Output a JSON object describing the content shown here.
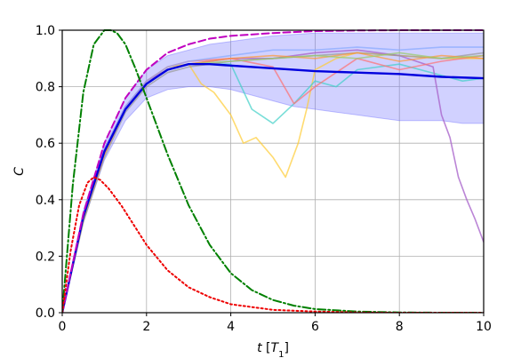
{
  "chart_data": {
    "type": "line",
    "title": "",
    "xlabel": "t [T1]",
    "ylabel": "C",
    "xlim": [
      0,
      10
    ],
    "ylim": [
      0,
      1
    ],
    "xticks": [
      "0",
      "2",
      "4",
      "6",
      "8",
      "10"
    ],
    "yticks": [
      "0.0",
      "0.2",
      "0.4",
      "0.6",
      "0.8",
      "1.0"
    ],
    "grid": true,
    "legend": "none",
    "band": {
      "color": "#6666ff",
      "x": [
        0,
        0.5,
        1,
        1.5,
        2,
        2.5,
        3,
        3.5,
        4,
        4.5,
        5,
        5.5,
        6,
        6.5,
        7,
        7.5,
        8,
        8.5,
        9,
        9.5,
        10
      ],
      "upper": [
        0,
        0.36,
        0.6,
        0.76,
        0.86,
        0.91,
        0.93,
        0.95,
        0.96,
        0.97,
        0.98,
        0.985,
        0.99,
        0.99,
        0.99,
        0.99,
        0.99,
        0.99,
        0.99,
        0.99,
        0.99
      ],
      "lower": [
        0,
        0.32,
        0.54,
        0.68,
        0.76,
        0.79,
        0.8,
        0.8,
        0.79,
        0.77,
        0.75,
        0.73,
        0.72,
        0.71,
        0.7,
        0.69,
        0.68,
        0.68,
        0.68,
        0.67,
        0.67
      ]
    },
    "series": [
      {
        "color": "#0000dd",
        "style": "solid",
        "width": 2.4,
        "x": [
          0,
          0.5,
          1,
          1.5,
          2,
          2.5,
          3,
          3.5,
          4,
          5,
          6,
          7,
          8,
          9,
          10
        ],
        "y": [
          0,
          0.34,
          0.57,
          0.72,
          0.81,
          0.86,
          0.88,
          0.88,
          0.875,
          0.865,
          0.855,
          0.85,
          0.845,
          0.835,
          0.83
        ]
      },
      {
        "color": "#c000c0",
        "style": "dashed",
        "width": 2,
        "x": [
          0,
          0.5,
          1,
          1.5,
          2,
          2.5,
          3,
          3.5,
          4,
          5,
          6,
          7,
          8,
          9,
          10
        ],
        "y": [
          0,
          0.35,
          0.6,
          0.76,
          0.86,
          0.92,
          0.95,
          0.97,
          0.98,
          0.99,
          0.997,
          0.999,
          1.0,
          1.0,
          1.0
        ]
      },
      {
        "color": "#008000",
        "style": "dashdot",
        "width": 2,
        "x": [
          0,
          0.25,
          0.5,
          0.75,
          1,
          1.15,
          1.3,
          1.5,
          1.75,
          2,
          2.5,
          3,
          3.5,
          4,
          4.5,
          5,
          5.5,
          6,
          7,
          8,
          9,
          10
        ],
        "y": [
          0,
          0.45,
          0.78,
          0.95,
          1.0,
          1.0,
          0.99,
          0.95,
          0.86,
          0.76,
          0.56,
          0.38,
          0.24,
          0.14,
          0.08,
          0.045,
          0.025,
          0.013,
          0.004,
          0.001,
          0,
          0
        ]
      },
      {
        "color": "#ee0000",
        "style": "dotted",
        "width": 2,
        "x": [
          0,
          0.2,
          0.4,
          0.6,
          0.75,
          0.9,
          1.1,
          1.4,
          1.7,
          2,
          2.5,
          3,
          3.5,
          4,
          5,
          6,
          7,
          8,
          10
        ],
        "y": [
          0,
          0.22,
          0.38,
          0.46,
          0.48,
          0.47,
          0.44,
          0.38,
          0.31,
          0.24,
          0.15,
          0.09,
          0.055,
          0.03,
          0.01,
          0.004,
          0.001,
          0,
          0
        ]
      },
      {
        "color": "#ffcc33",
        "style": "solid",
        "width": 1.6,
        "opacity": 0.7,
        "x": [
          0,
          0.5,
          1,
          1.5,
          2,
          2.5,
          3,
          3.3,
          3.6,
          4,
          4.3,
          4.6,
          5,
          5.3,
          5.6,
          5.8,
          6,
          6.5,
          7,
          8,
          9,
          10
        ],
        "y": [
          0,
          0.33,
          0.56,
          0.72,
          0.82,
          0.87,
          0.88,
          0.81,
          0.78,
          0.7,
          0.6,
          0.62,
          0.55,
          0.48,
          0.6,
          0.72,
          0.86,
          0.9,
          0.92,
          0.91,
          0.9,
          0.9
        ]
      },
      {
        "color": "#40d0c8",
        "style": "solid",
        "width": 1.6,
        "opacity": 0.7,
        "x": [
          0,
          0.5,
          1,
          1.5,
          2,
          2.5,
          3,
          4,
          4.5,
          5,
          5.5,
          6,
          6.5,
          7,
          8,
          9,
          9.5,
          10
        ],
        "y": [
          0,
          0.33,
          0.57,
          0.72,
          0.81,
          0.86,
          0.88,
          0.88,
          0.72,
          0.67,
          0.74,
          0.82,
          0.8,
          0.86,
          0.88,
          0.84,
          0.82,
          0.83
        ]
      },
      {
        "color": "#aa66cc",
        "style": "solid",
        "width": 1.6,
        "opacity": 0.8,
        "x": [
          0,
          0.5,
          1,
          1.5,
          2,
          2.5,
          3,
          4,
          5,
          6,
          7,
          8,
          8.8,
          9,
          9.2,
          9.4,
          9.6,
          9.8,
          10
        ],
        "y": [
          0,
          0.34,
          0.58,
          0.73,
          0.82,
          0.86,
          0.88,
          0.9,
          0.9,
          0.92,
          0.93,
          0.91,
          0.87,
          0.7,
          0.62,
          0.48,
          0.4,
          0.33,
          0.25
        ]
      },
      {
        "color": "#ff7070",
        "style": "solid",
        "width": 1.6,
        "opacity": 0.7,
        "x": [
          0,
          0.5,
          1,
          1.5,
          2,
          2.5,
          3,
          4,
          5,
          5.5,
          6,
          6.5,
          7,
          8,
          9,
          10
        ],
        "y": [
          0,
          0.33,
          0.57,
          0.72,
          0.82,
          0.87,
          0.89,
          0.9,
          0.87,
          0.74,
          0.8,
          0.85,
          0.9,
          0.86,
          0.89,
          0.91
        ]
      },
      {
        "color": "#88aaff",
        "style": "solid",
        "width": 1.6,
        "opacity": 0.7,
        "x": [
          0,
          0.5,
          1,
          1.5,
          2,
          2.5,
          3,
          4,
          5,
          6,
          7,
          8,
          9,
          10
        ],
        "y": [
          0,
          0.34,
          0.58,
          0.73,
          0.82,
          0.87,
          0.89,
          0.91,
          0.93,
          0.93,
          0.94,
          0.93,
          0.94,
          0.94
        ]
      },
      {
        "color": "#999999",
        "style": "solid",
        "width": 1.6,
        "opacity": 0.7,
        "x": [
          0,
          0.5,
          1,
          1.5,
          2,
          2.5,
          3,
          4,
          5,
          6,
          7,
          8,
          9,
          10
        ],
        "y": [
          0,
          0.32,
          0.55,
          0.71,
          0.8,
          0.85,
          0.87,
          0.89,
          0.9,
          0.91,
          0.92,
          0.91,
          0.9,
          0.92
        ]
      },
      {
        "color": "#ff9933",
        "style": "solid",
        "width": 1.6,
        "opacity": 0.7,
        "x": [
          0,
          0.5,
          1,
          1.5,
          2,
          2.5,
          3,
          4,
          5,
          6,
          7,
          8,
          9,
          10
        ],
        "y": [
          0,
          0.33,
          0.56,
          0.72,
          0.81,
          0.86,
          0.88,
          0.9,
          0.91,
          0.9,
          0.92,
          0.89,
          0.91,
          0.9
        ]
      },
      {
        "color": "#99cc66",
        "style": "solid",
        "width": 1.6,
        "opacity": 0.7,
        "x": [
          0,
          0.5,
          1,
          1.5,
          2,
          2.5,
          3,
          4,
          5,
          6,
          7,
          8,
          9,
          10
        ],
        "y": [
          0,
          0.33,
          0.57,
          0.72,
          0.81,
          0.86,
          0.88,
          0.89,
          0.9,
          0.91,
          0.9,
          0.92,
          0.9,
          0.91
        ]
      }
    ]
  }
}
